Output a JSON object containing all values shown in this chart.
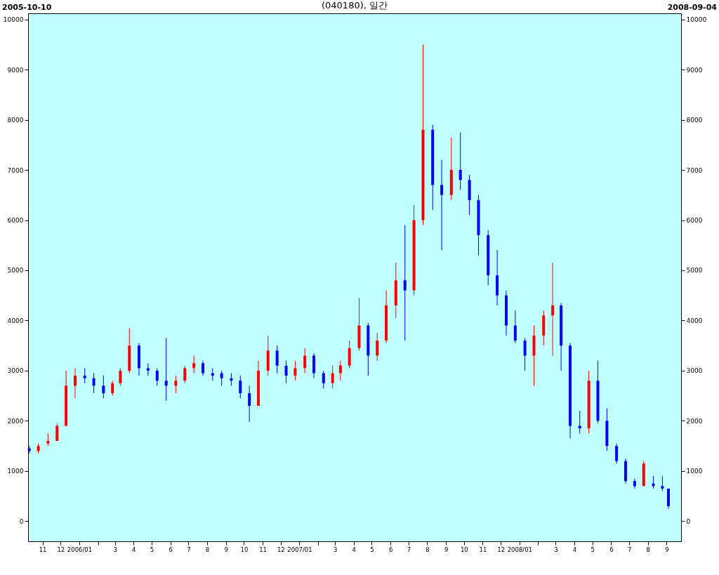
{
  "chart_data": {
    "type": "candlestick",
    "title": "(040180), 일간",
    "annotations": [
      "2005-10-10",
      "2008-09-04"
    ],
    "x": [
      "2005-10-10",
      "2005-10-25",
      "2005-11-10",
      "2005-11-25",
      "2005-12-10",
      "2005-12-25",
      "2006-01-10",
      "2006-01-25",
      "2006-02-10",
      "2006-02-25",
      "2006-03-10",
      "2006-03-25",
      "2006-04-10",
      "2006-04-25",
      "2006-05-10",
      "2006-05-25",
      "2006-06-10",
      "2006-06-25",
      "2006-07-10",
      "2006-07-25",
      "2006-08-10",
      "2006-08-25",
      "2006-09-10",
      "2006-09-25",
      "2006-10-10",
      "2006-10-25",
      "2006-11-10",
      "2006-11-25",
      "2006-12-10",
      "2006-12-25",
      "2007-01-10",
      "2007-01-25",
      "2007-02-10",
      "2007-02-25",
      "2007-03-10",
      "2007-03-25",
      "2007-04-10",
      "2007-04-25",
      "2007-05-10",
      "2007-05-25",
      "2007-06-10",
      "2007-06-25",
      "2007-07-10",
      "2007-07-25",
      "2007-08-10",
      "2007-08-25",
      "2007-09-10",
      "2007-09-25",
      "2007-10-10",
      "2007-10-25",
      "2007-11-10",
      "2007-11-25",
      "2007-12-10",
      "2007-12-25",
      "2008-01-10",
      "2008-01-25",
      "2008-02-10",
      "2008-02-25",
      "2008-03-10",
      "2008-03-25",
      "2008-04-10",
      "2008-04-25",
      "2008-05-10",
      "2008-05-25",
      "2008-06-10",
      "2008-06-25",
      "2008-07-10",
      "2008-07-25",
      "2008-08-10",
      "2008-08-25",
      "2008-09-04"
    ],
    "ohlc": [
      [
        1450,
        1500,
        1350,
        1400
      ],
      [
        1400,
        1550,
        1350,
        1500
      ],
      [
        1550,
        1750,
        1500,
        1600
      ],
      [
        1600,
        1950,
        1600,
        1900
      ],
      [
        1900,
        3000,
        1900,
        2700
      ],
      [
        2700,
        3050,
        2450,
        2900
      ],
      [
        2900,
        3050,
        2750,
        2850
      ],
      [
        2850,
        2950,
        2550,
        2700
      ],
      [
        2700,
        2900,
        2450,
        2550
      ],
      [
        2550,
        2800,
        2500,
        2750
      ],
      [
        2750,
        3050,
        2700,
        3000
      ],
      [
        3000,
        3850,
        2950,
        3500
      ],
      [
        3500,
        3550,
        2900,
        3050
      ],
      [
        3050,
        3150,
        2900,
        3000
      ],
      [
        3000,
        3050,
        2700,
        2800
      ],
      [
        2800,
        3650,
        2400,
        2700
      ],
      [
        2700,
        2900,
        2550,
        2800
      ],
      [
        2800,
        3100,
        2750,
        3050
      ],
      [
        3050,
        3300,
        2950,
        3150
      ],
      [
        3150,
        3200,
        2900,
        2950
      ],
      [
        2950,
        3050,
        2800,
        2900
      ],
      [
        2950,
        3000,
        2700,
        2850
      ],
      [
        2850,
        2950,
        2700,
        2800
      ],
      [
        2800,
        2900,
        2450,
        2550
      ],
      [
        2550,
        2700,
        1980,
        2300
      ],
      [
        2300,
        3200,
        2300,
        3000
      ],
      [
        3000,
        3700,
        2900,
        3400
      ],
      [
        3400,
        3500,
        2950,
        3100
      ],
      [
        3100,
        3200,
        2750,
        2900
      ],
      [
        2900,
        3200,
        2800,
        3050
      ],
      [
        3050,
        3450,
        2950,
        3300
      ],
      [
        3300,
        3350,
        2850,
        2950
      ],
      [
        2950,
        3000,
        2650,
        2750
      ],
      [
        2750,
        3100,
        2650,
        2950
      ],
      [
        2950,
        3200,
        2800,
        3100
      ],
      [
        3100,
        3600,
        3050,
        3450
      ],
      [
        3450,
        4450,
        3400,
        3900
      ],
      [
        3900,
        3950,
        2900,
        3300
      ],
      [
        3300,
        3750,
        3200,
        3600
      ],
      [
        3600,
        4600,
        3550,
        4300
      ],
      [
        4300,
        5150,
        4050,
        4800
      ],
      [
        4800,
        5900,
        3600,
        4600
      ],
      [
        4600,
        6300,
        4500,
        6000
      ],
      [
        6000,
        9500,
        5900,
        7800
      ],
      [
        7800,
        7900,
        6200,
        6700
      ],
      [
        6700,
        7200,
        5400,
        6500
      ],
      [
        6500,
        7650,
        6400,
        7000
      ],
      [
        7000,
        7750,
        6600,
        6800
      ],
      [
        6800,
        6900,
        6100,
        6400
      ],
      [
        6400,
        6500,
        5300,
        5700
      ],
      [
        5700,
        5800,
        4700,
        4900
      ],
      [
        4900,
        5400,
        4300,
        4500
      ],
      [
        4500,
        4600,
        3700,
        3900
      ],
      [
        3900,
        4200,
        3550,
        3600
      ],
      [
        3600,
        3650,
        3000,
        3300
      ],
      [
        3300,
        3900,
        2700,
        3700
      ],
      [
        3700,
        4200,
        3500,
        4100
      ],
      [
        4100,
        5150,
        3300,
        4300
      ],
      [
        4300,
        4350,
        3000,
        3500
      ],
      [
        3500,
        3550,
        1650,
        1900
      ],
      [
        1900,
        2200,
        1750,
        1850
      ],
      [
        1850,
        3000,
        1750,
        2800
      ],
      [
        2800,
        3200,
        1950,
        2000
      ],
      [
        2000,
        2250,
        1400,
        1500
      ],
      [
        1500,
        1550,
        1150,
        1200
      ],
      [
        1200,
        1250,
        750,
        800
      ],
      [
        800,
        850,
        650,
        700
      ],
      [
        700,
        1200,
        700,
        1150
      ],
      [
        750,
        900,
        650,
        700
      ],
      [
        700,
        900,
        600,
        650
      ],
      [
        650,
        650,
        250,
        300
      ]
    ],
    "colors": [
      "#0000ff",
      "#ff0000",
      "#ff0000",
      "#ff0000",
      "#ff0000",
      "#ff0000",
      "#0000ff",
      "#0000ff",
      "#0000ff",
      "#ff0000",
      "#ff0000",
      "#ff0000",
      "#0000ff",
      "#0000ff",
      "#0000ff",
      "#0000ff",
      "#ff0000",
      "#ff0000",
      "#ff0000",
      "#0000ff",
      "#0000ff",
      "#0000ff",
      "#0000ff",
      "#0000ff",
      "#0000ff",
      "#ff0000",
      "#ff0000",
      "#0000ff",
      "#0000ff",
      "#ff0000",
      "#ff0000",
      "#0000ff",
      "#0000ff",
      "#ff0000",
      "#ff0000",
      "#ff0000",
      "#ff0000",
      "#0000ff",
      "#ff0000",
      "#ff0000",
      "#ff0000",
      "#0000ff",
      "#ff0000",
      "#ff0000",
      "#0000ff",
      "#0000ff",
      "#ff0000",
      "#0000ff",
      "#0000ff",
      "#0000ff",
      "#0000ff",
      "#0000ff",
      "#0000ff",
      "#0000ff",
      "#0000ff",
      "#ff0000",
      "#ff0000",
      "#ff0000",
      "#0000ff",
      "#0000ff",
      "#0000ff",
      "#ff0000",
      "#0000ff",
      "#0000ff",
      "#0000ff",
      "#0000ff",
      "#0000ff",
      "#ff0000",
      "#0000ff",
      "#0000ff",
      "#0000ff"
    ],
    "xlim": [
      "2005-10-08",
      "2008-09-25"
    ],
    "xticks": [
      {
        "value": "2005-11-01",
        "label": "11"
      },
      {
        "value": "2005-12-01",
        "label": "12"
      },
      {
        "value": "2006-01-01",
        "label": "2006/01"
      },
      {
        "value": "2006-02-01",
        "label": null
      },
      {
        "value": "2006-03-01",
        "label": "3"
      },
      {
        "value": "2006-04-01",
        "label": "4"
      },
      {
        "value": "2006-05-01",
        "label": "5"
      },
      {
        "value": "2006-06-01",
        "label": "6"
      },
      {
        "value": "2006-07-01",
        "label": "7"
      },
      {
        "value": "2006-08-01",
        "label": "8"
      },
      {
        "value": "2006-09-01",
        "label": "9"
      },
      {
        "value": "2006-10-01",
        "label": "10"
      },
      {
        "value": "2006-11-01",
        "label": "11"
      },
      {
        "value": "2006-12-01",
        "label": "12"
      },
      {
        "value": "2007-01-01",
        "label": "2007/01"
      },
      {
        "value": "2007-02-01",
        "label": null
      },
      {
        "value": "2007-03-01",
        "label": "3"
      },
      {
        "value": "2007-04-01",
        "label": "4"
      },
      {
        "value": "2007-05-01",
        "label": "5"
      },
      {
        "value": "2007-06-01",
        "label": "6"
      },
      {
        "value": "2007-07-01",
        "label": "7"
      },
      {
        "value": "2007-08-01",
        "label": "8"
      },
      {
        "value": "2007-09-01",
        "label": "9"
      },
      {
        "value": "2007-10-01",
        "label": "10"
      },
      {
        "value": "2007-11-01",
        "label": "11"
      },
      {
        "value": "2007-12-01",
        "label": "12"
      },
      {
        "value": "2008-01-01",
        "label": "2008/01"
      },
      {
        "value": "2008-02-01",
        "label": null
      },
      {
        "value": "2008-03-01",
        "label": "3"
      },
      {
        "value": "2008-04-01",
        "label": "4"
      },
      {
        "value": "2008-05-01",
        "label": "5"
      },
      {
        "value": "2008-06-01",
        "label": "6"
      },
      {
        "value": "2008-07-01",
        "label": "7"
      },
      {
        "value": "2008-08-01",
        "label": "8"
      },
      {
        "value": "2008-09-01",
        "label": "9"
      }
    ],
    "ylim": [
      -400,
      10120
    ],
    "yticks": [
      0,
      1000,
      2000,
      3000,
      4000,
      5000,
      6000,
      7000,
      8000,
      9000,
      10000
    ],
    "y2lim": [
      -400,
      10120
    ],
    "y2ticks": [
      0,
      1000,
      2000,
      3000,
      4000,
      5000,
      6000,
      7000,
      8000,
      9000,
      10000
    ]
  }
}
